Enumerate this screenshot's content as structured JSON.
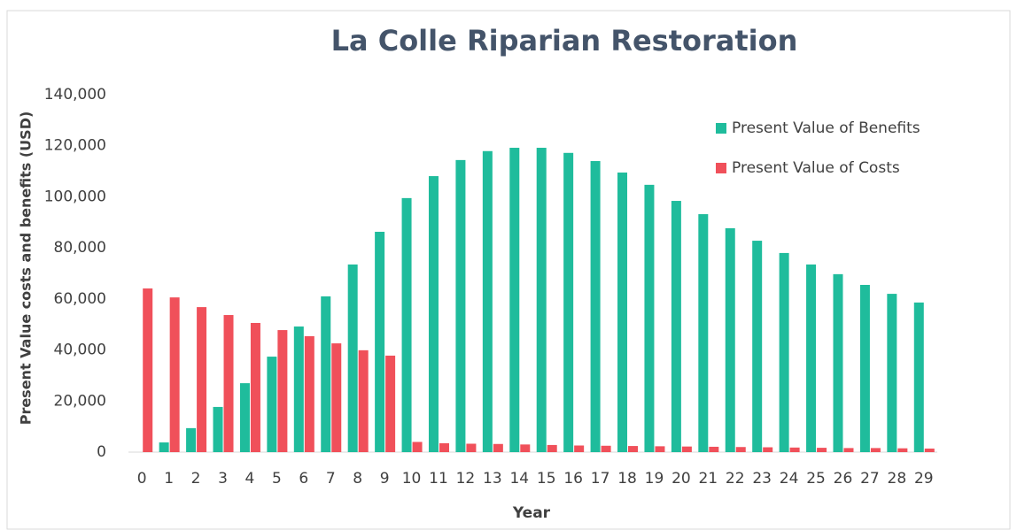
{
  "chart_data": {
    "type": "bar",
    "title": "La Colle Riparian Restoration",
    "x_label": "Year",
    "y_label": "Present Value costs and benefits (USD)",
    "categories": [
      "0",
      "1",
      "2",
      "3",
      "4",
      "5",
      "6",
      "7",
      "8",
      "9",
      "10",
      "11",
      "12",
      "13",
      "14",
      "15",
      "16",
      "17",
      "18",
      "19",
      "20",
      "21",
      "22",
      "23",
      "24",
      "25",
      "26",
      "27",
      "28",
      "29"
    ],
    "series": [
      {
        "name": "Present Value of Benefits",
        "color": "#1fbc9c",
        "values": [
          0,
          3800,
          9400,
          17700,
          27000,
          37400,
          49200,
          61000,
          73500,
          86300,
          99500,
          108100,
          114400,
          117900,
          119200,
          119200,
          117200,
          114000,
          109500,
          104700,
          98400,
          93200,
          87700,
          82800,
          78000,
          73500,
          69700,
          65500,
          62000,
          58600
        ]
      },
      {
        "name": "Present Value of Costs",
        "color": "#f0505a",
        "values": [
          64100,
          60600,
          56800,
          53700,
          50600,
          47800,
          45400,
          42600,
          39900,
          37800,
          4000,
          3500,
          3300,
          3200,
          3000,
          2800,
          2600,
          2500,
          2400,
          2300,
          2200,
          2100,
          2000,
          1900,
          1800,
          1700,
          1600,
          1600,
          1500,
          1400
        ]
      }
    ],
    "ylim": [
      0,
      140000
    ],
    "yticks": [
      0,
      {
        "value": 20000,
        "label": "20,000"
      },
      {
        "value": 40000,
        "label": "40,000"
      },
      {
        "value": 60000,
        "label": "60,000"
      },
      {
        "value": 80000,
        "label": "80,000"
      },
      {
        "value": 100000,
        "label": "100,000"
      },
      {
        "value": 120000,
        "label": "120,000"
      },
      {
        "value": 140000,
        "label": "140,000"
      }
    ],
    "legend": "top-right"
  }
}
